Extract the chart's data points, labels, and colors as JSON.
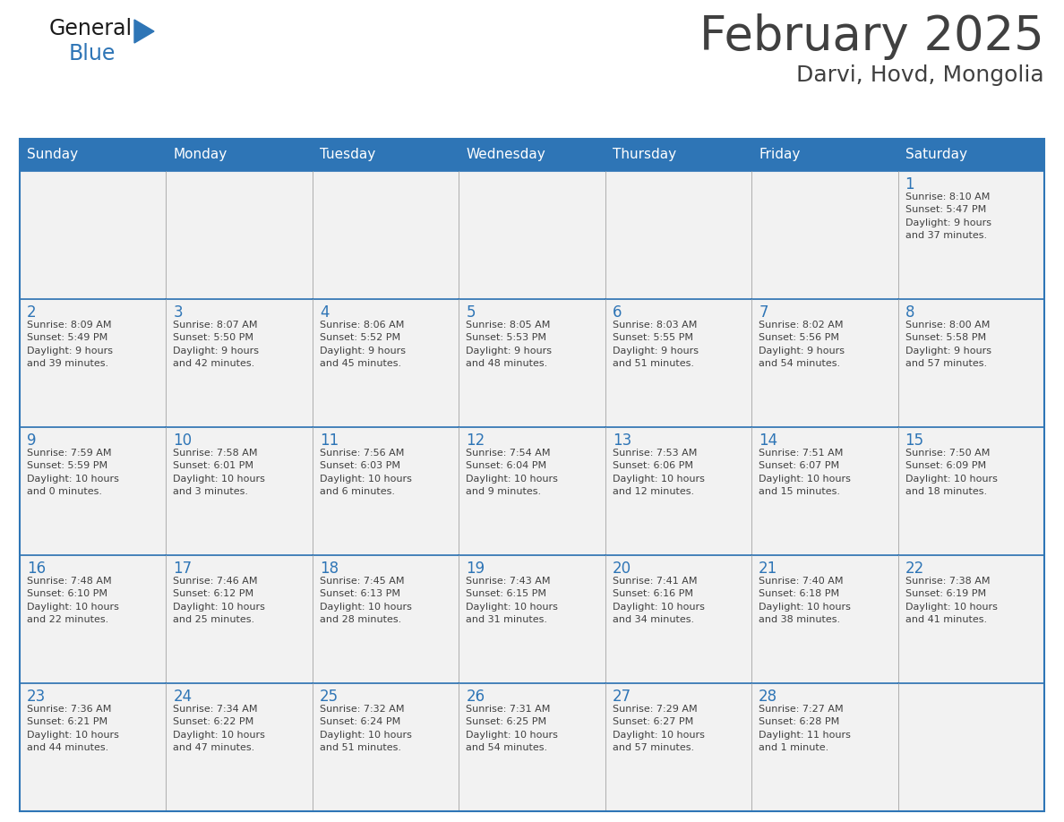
{
  "title": "February 2025",
  "subtitle": "Darvi, Hovd, Mongolia",
  "header_color": "#2E75B6",
  "header_text_color": "#FFFFFF",
  "cell_bg_color": "#F2F2F2",
  "border_color": "#2E75B6",
  "cell_border_color": "#AAAAAA",
  "text_color": "#404040",
  "day_number_color": "#2E75B6",
  "days_of_week": [
    "Sunday",
    "Monday",
    "Tuesday",
    "Wednesday",
    "Thursday",
    "Friday",
    "Saturday"
  ],
  "weeks": [
    [
      {
        "day": null,
        "info": null
      },
      {
        "day": null,
        "info": null
      },
      {
        "day": null,
        "info": null
      },
      {
        "day": null,
        "info": null
      },
      {
        "day": null,
        "info": null
      },
      {
        "day": null,
        "info": null
      },
      {
        "day": 1,
        "info": "Sunrise: 8:10 AM\nSunset: 5:47 PM\nDaylight: 9 hours\nand 37 minutes."
      }
    ],
    [
      {
        "day": 2,
        "info": "Sunrise: 8:09 AM\nSunset: 5:49 PM\nDaylight: 9 hours\nand 39 minutes."
      },
      {
        "day": 3,
        "info": "Sunrise: 8:07 AM\nSunset: 5:50 PM\nDaylight: 9 hours\nand 42 minutes."
      },
      {
        "day": 4,
        "info": "Sunrise: 8:06 AM\nSunset: 5:52 PM\nDaylight: 9 hours\nand 45 minutes."
      },
      {
        "day": 5,
        "info": "Sunrise: 8:05 AM\nSunset: 5:53 PM\nDaylight: 9 hours\nand 48 minutes."
      },
      {
        "day": 6,
        "info": "Sunrise: 8:03 AM\nSunset: 5:55 PM\nDaylight: 9 hours\nand 51 minutes."
      },
      {
        "day": 7,
        "info": "Sunrise: 8:02 AM\nSunset: 5:56 PM\nDaylight: 9 hours\nand 54 minutes."
      },
      {
        "day": 8,
        "info": "Sunrise: 8:00 AM\nSunset: 5:58 PM\nDaylight: 9 hours\nand 57 minutes."
      }
    ],
    [
      {
        "day": 9,
        "info": "Sunrise: 7:59 AM\nSunset: 5:59 PM\nDaylight: 10 hours\nand 0 minutes."
      },
      {
        "day": 10,
        "info": "Sunrise: 7:58 AM\nSunset: 6:01 PM\nDaylight: 10 hours\nand 3 minutes."
      },
      {
        "day": 11,
        "info": "Sunrise: 7:56 AM\nSunset: 6:03 PM\nDaylight: 10 hours\nand 6 minutes."
      },
      {
        "day": 12,
        "info": "Sunrise: 7:54 AM\nSunset: 6:04 PM\nDaylight: 10 hours\nand 9 minutes."
      },
      {
        "day": 13,
        "info": "Sunrise: 7:53 AM\nSunset: 6:06 PM\nDaylight: 10 hours\nand 12 minutes."
      },
      {
        "day": 14,
        "info": "Sunrise: 7:51 AM\nSunset: 6:07 PM\nDaylight: 10 hours\nand 15 minutes."
      },
      {
        "day": 15,
        "info": "Sunrise: 7:50 AM\nSunset: 6:09 PM\nDaylight: 10 hours\nand 18 minutes."
      }
    ],
    [
      {
        "day": 16,
        "info": "Sunrise: 7:48 AM\nSunset: 6:10 PM\nDaylight: 10 hours\nand 22 minutes."
      },
      {
        "day": 17,
        "info": "Sunrise: 7:46 AM\nSunset: 6:12 PM\nDaylight: 10 hours\nand 25 minutes."
      },
      {
        "day": 18,
        "info": "Sunrise: 7:45 AM\nSunset: 6:13 PM\nDaylight: 10 hours\nand 28 minutes."
      },
      {
        "day": 19,
        "info": "Sunrise: 7:43 AM\nSunset: 6:15 PM\nDaylight: 10 hours\nand 31 minutes."
      },
      {
        "day": 20,
        "info": "Sunrise: 7:41 AM\nSunset: 6:16 PM\nDaylight: 10 hours\nand 34 minutes."
      },
      {
        "day": 21,
        "info": "Sunrise: 7:40 AM\nSunset: 6:18 PM\nDaylight: 10 hours\nand 38 minutes."
      },
      {
        "day": 22,
        "info": "Sunrise: 7:38 AM\nSunset: 6:19 PM\nDaylight: 10 hours\nand 41 minutes."
      }
    ],
    [
      {
        "day": 23,
        "info": "Sunrise: 7:36 AM\nSunset: 6:21 PM\nDaylight: 10 hours\nand 44 minutes."
      },
      {
        "day": 24,
        "info": "Sunrise: 7:34 AM\nSunset: 6:22 PM\nDaylight: 10 hours\nand 47 minutes."
      },
      {
        "day": 25,
        "info": "Sunrise: 7:32 AM\nSunset: 6:24 PM\nDaylight: 10 hours\nand 51 minutes."
      },
      {
        "day": 26,
        "info": "Sunrise: 7:31 AM\nSunset: 6:25 PM\nDaylight: 10 hours\nand 54 minutes."
      },
      {
        "day": 27,
        "info": "Sunrise: 7:29 AM\nSunset: 6:27 PM\nDaylight: 10 hours\nand 57 minutes."
      },
      {
        "day": 28,
        "info": "Sunrise: 7:27 AM\nSunset: 6:28 PM\nDaylight: 11 hours\nand 1 minute."
      },
      {
        "day": null,
        "info": null
      }
    ]
  ],
  "logo_color_general": "#1a1a1a",
  "logo_color_blue": "#2E75B6",
  "fig_width": 11.88,
  "fig_height": 9.18,
  "dpi": 100
}
